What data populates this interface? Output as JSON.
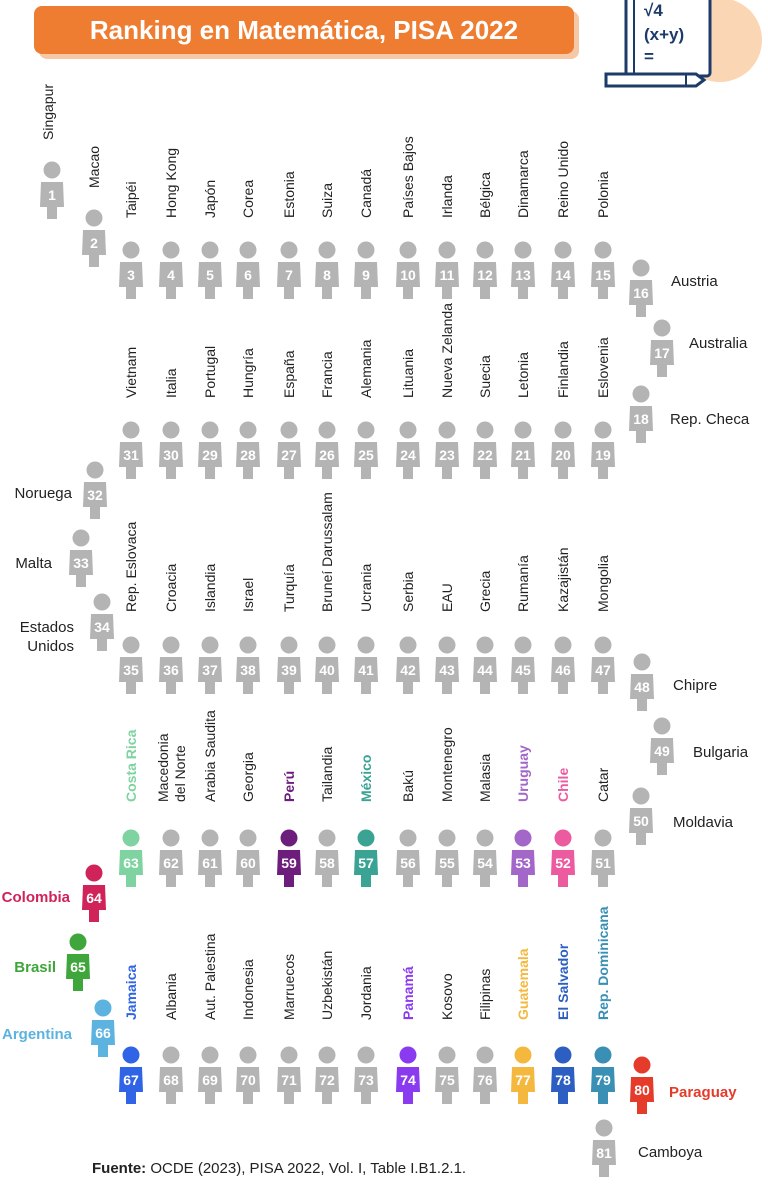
{
  "title": "Ranking en Matemática, PISA 2022",
  "source_label": "Fuente:",
  "source_text": "OCDE (2023), PISA 2022, Vol. I, Table I.B1.2.1.",
  "badge": {
    "line1": "√4",
    "line2": "(x+y)",
    "line3": "=",
    "icon": "math-book-pencil-icon"
  },
  "colors": {
    "default": "#b4b4b4",
    "accent_orange": "#ee7d31",
    "costa_rica": "#7ed3a0",
    "peru": "#6d1e7d",
    "mexico": "#3aa394",
    "uruguay": "#a267c8",
    "chile": "#ec5aa0",
    "colombia": "#d0235a",
    "brasil": "#3ea63a",
    "argentina": "#5cb3df",
    "jamaica": "#2f64e6",
    "panama": "#8a3bf0",
    "guatemala": "#f5b83e",
    "el_salvador": "#2d5fc2",
    "rep_dominicana": "#3a8fb5",
    "paraguay": "#e53b2b"
  },
  "countries": [
    {
      "rank": "1",
      "name": "Singapur"
    },
    {
      "rank": "2",
      "name": "Macao"
    },
    {
      "rank": "3",
      "name": "Taipéi"
    },
    {
      "rank": "4",
      "name": "Hong Kong"
    },
    {
      "rank": "5",
      "name": "Japón"
    },
    {
      "rank": "6",
      "name": "Corea"
    },
    {
      "rank": "7",
      "name": "Estonia"
    },
    {
      "rank": "8",
      "name": "Suiza"
    },
    {
      "rank": "9",
      "name": "Canadá"
    },
    {
      "rank": "10",
      "name": "Países Bajos"
    },
    {
      "rank": "11",
      "name": "Irlanda"
    },
    {
      "rank": "12",
      "name": "Bélgica"
    },
    {
      "rank": "13",
      "name": "Dinamarca"
    },
    {
      "rank": "14",
      "name": "Reino Unido"
    },
    {
      "rank": "15",
      "name": "Polonia"
    },
    {
      "rank": "16",
      "name": "Austria"
    },
    {
      "rank": "17",
      "name": "Australia"
    },
    {
      "rank": "18",
      "name": "Rep. Checa"
    },
    {
      "rank": "19",
      "name": "Eslovenia"
    },
    {
      "rank": "20",
      "name": "Finlandia"
    },
    {
      "rank": "21",
      "name": "Letonia"
    },
    {
      "rank": "22",
      "name": "Suecia"
    },
    {
      "rank": "23",
      "name": "Nueva Zelanda"
    },
    {
      "rank": "24",
      "name": "Lituania"
    },
    {
      "rank": "25",
      "name": "Alemania"
    },
    {
      "rank": "26",
      "name": "Francia"
    },
    {
      "rank": "27",
      "name": "España"
    },
    {
      "rank": "28",
      "name": "Hungría"
    },
    {
      "rank": "29",
      "name": "Portugal"
    },
    {
      "rank": "30",
      "name": "Italia"
    },
    {
      "rank": "31",
      "name": "Vietnam"
    },
    {
      "rank": "32",
      "name": "Noruega"
    },
    {
      "rank": "33",
      "name": "Malta"
    },
    {
      "rank": "34",
      "name": "Estados Unidos"
    },
    {
      "rank": "35",
      "name": "Rep. Eslovaca"
    },
    {
      "rank": "36",
      "name": "Croacia"
    },
    {
      "rank": "37",
      "name": "Islandia"
    },
    {
      "rank": "38",
      "name": "Israel"
    },
    {
      "rank": "39",
      "name": "Turquía"
    },
    {
      "rank": "40",
      "name": "Bruneí Darussalam"
    },
    {
      "rank": "41",
      "name": "Ucrania"
    },
    {
      "rank": "42",
      "name": "Serbia"
    },
    {
      "rank": "43",
      "name": "EAU"
    },
    {
      "rank": "44",
      "name": "Grecia"
    },
    {
      "rank": "45",
      "name": "Rumanía"
    },
    {
      "rank": "46",
      "name": "Kazajistán"
    },
    {
      "rank": "47",
      "name": "Mongolia"
    },
    {
      "rank": "48",
      "name": "Chipre"
    },
    {
      "rank": "49",
      "name": "Bulgaria"
    },
    {
      "rank": "50",
      "name": "Moldavia"
    },
    {
      "rank": "51",
      "name": "Catar"
    },
    {
      "rank": "52",
      "name": "Chile",
      "color": "chile"
    },
    {
      "rank": "53",
      "name": "Uruguay",
      "color": "uruguay"
    },
    {
      "rank": "54",
      "name": "Malasia"
    },
    {
      "rank": "55",
      "name": "Montenegro"
    },
    {
      "rank": "56",
      "name": "Bakú"
    },
    {
      "rank": "57",
      "name": "México",
      "color": "mexico"
    },
    {
      "rank": "58",
      "name": "Tailandia"
    },
    {
      "rank": "59",
      "name": "Perú",
      "color": "peru"
    },
    {
      "rank": "60",
      "name": "Georgia"
    },
    {
      "rank": "61",
      "name": "Arabia Saudita"
    },
    {
      "rank": "62",
      "name": "Macedonia del Norte"
    },
    {
      "rank": "63",
      "name": "Costa Rica",
      "color": "costa_rica"
    },
    {
      "rank": "64",
      "name": "Colombia",
      "color": "colombia"
    },
    {
      "rank": "65",
      "name": "Brasil",
      "color": "brasil"
    },
    {
      "rank": "66",
      "name": "Argentina",
      "color": "argentina"
    },
    {
      "rank": "67",
      "name": "Jamaica",
      "color": "jamaica"
    },
    {
      "rank": "68",
      "name": "Albania"
    },
    {
      "rank": "69",
      "name": "Aut. Palestina"
    },
    {
      "rank": "70",
      "name": "Indonesia"
    },
    {
      "rank": "71",
      "name": "Marruecos"
    },
    {
      "rank": "72",
      "name": "Uzbekistán"
    },
    {
      "rank": "73",
      "name": "Jordania"
    },
    {
      "rank": "74",
      "name": "Panamá",
      "color": "panama"
    },
    {
      "rank": "75",
      "name": "Kosovo"
    },
    {
      "rank": "76",
      "name": "Filipinas"
    },
    {
      "rank": "77",
      "name": "Guatemala",
      "color": "guatemala"
    },
    {
      "rank": "78",
      "name": "El Salvador",
      "color": "el_salvador"
    },
    {
      "rank": "79",
      "name": "Rep. Dominicana",
      "color": "rep_dominicana"
    },
    {
      "rank": "80",
      "name": "Paraguay",
      "color": "paraguay"
    },
    {
      "rank": "81",
      "name": "Camboya"
    }
  ]
}
